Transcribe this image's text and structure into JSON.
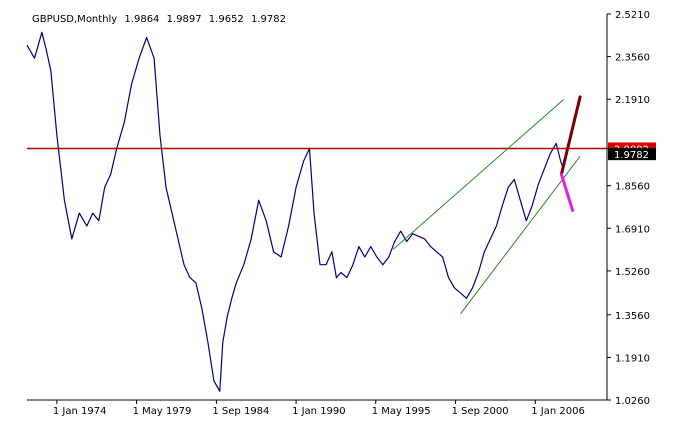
{
  "chart_info": {
    "symbol": "GBPUSD,Monthly",
    "open": "1.9864",
    "high": "1.9897",
    "low": "1.9652",
    "close": "1.9782"
  },
  "chart_data": {
    "type": "line",
    "title": "GBPUSD,Monthly",
    "xlabel": "",
    "ylabel": "",
    "ylim": [
      1.026,
      2.521
    ],
    "xlim": [
      1972.0,
      2010.8
    ],
    "y_ticks": [
      "2.5210",
      "2.3560",
      "2.1910",
      "2.0002",
      "1.8560",
      "1.6910",
      "1.5260",
      "1.3560",
      "1.1910",
      "1.0260"
    ],
    "y_tick_values": [
      2.521,
      2.356,
      2.191,
      2.0002,
      1.856,
      1.691,
      1.526,
      1.356,
      1.191,
      1.026
    ],
    "x_ticks": [
      "1 Jan 1974",
      "1 May 1979",
      "1 Sep 1984",
      "1 Jan 1990",
      "1 May 1995",
      "1 Sep 2000",
      "1 Jan 2006"
    ],
    "x_tick_values": [
      1974.0,
      1979.33,
      1984.67,
      1990.0,
      1995.33,
      2000.67,
      2006.0
    ],
    "series": [
      {
        "type": "line",
        "color": "#000080",
        "x": [
          1972.0,
          1972.5,
          1973.0,
          1973.3,
          1973.6,
          1974.0,
          1974.5,
          1975.0,
          1975.5,
          1976.0,
          1976.4,
          1976.8,
          1977.2,
          1977.6,
          1978.0,
          1978.5,
          1979.0,
          1979.5,
          1980.0,
          1980.5,
          1980.9,
          1981.3,
          1981.7,
          1982.1,
          1982.5,
          1982.9,
          1983.3,
          1983.7,
          1984.1,
          1984.5,
          1984.9,
          1985.1,
          1985.4,
          1985.7,
          1986.0,
          1986.5,
          1987.0,
          1987.5,
          1988.0,
          1988.5,
          1989.0,
          1989.5,
          1990.0,
          1990.5,
          1990.9,
          1991.2,
          1991.6,
          1992.0,
          1992.4,
          1992.7,
          1993.0,
          1993.4,
          1993.8,
          1994.2,
          1994.6,
          1995.0,
          1995.4,
          1995.8,
          1996.2,
          1996.6,
          1997.0,
          1997.4,
          1997.8,
          1998.2,
          1998.6,
          1999.0,
          1999.4,
          1999.8,
          2000.2,
          2000.6,
          2001.0,
          2001.4,
          2001.8,
          2002.2,
          2002.6,
          2003.0,
          2003.4,
          2003.8,
          2004.2,
          2004.6,
          2005.0,
          2005.4,
          2005.8,
          2006.2,
          2006.6,
          2007.0,
          2007.4,
          2007.7,
          2007.9
        ],
        "values": [
          2.4,
          2.35,
          2.45,
          2.38,
          2.3,
          2.05,
          1.8,
          1.65,
          1.75,
          1.7,
          1.75,
          1.72,
          1.85,
          1.9,
          2.0,
          2.1,
          2.25,
          2.35,
          2.43,
          2.35,
          2.05,
          1.85,
          1.75,
          1.65,
          1.55,
          1.5,
          1.48,
          1.38,
          1.25,
          1.1,
          1.06,
          1.25,
          1.35,
          1.42,
          1.48,
          1.55,
          1.65,
          1.8,
          1.72,
          1.6,
          1.58,
          1.7,
          1.85,
          1.95,
          2.0,
          1.75,
          1.55,
          1.55,
          1.6,
          1.5,
          1.52,
          1.5,
          1.55,
          1.62,
          1.58,
          1.62,
          1.58,
          1.55,
          1.58,
          1.64,
          1.68,
          1.64,
          1.67,
          1.66,
          1.65,
          1.62,
          1.6,
          1.58,
          1.5,
          1.46,
          1.44,
          1.42,
          1.46,
          1.52,
          1.6,
          1.65,
          1.7,
          1.78,
          1.85,
          1.88,
          1.8,
          1.72,
          1.78,
          1.86,
          1.92,
          1.98,
          2.02,
          1.95,
          1.92
        ]
      }
    ],
    "horizontal_lines": [
      {
        "y": 2.0002,
        "color": "#b00000"
      }
    ],
    "channel_lines": [
      {
        "x": [
          1996.5,
          2007.9
        ],
        "values": [
          1.61,
          2.19
        ],
        "color": "#228b22"
      },
      {
        "x": [
          2001.0,
          2009.0
        ],
        "values": [
          1.36,
          1.97
        ],
        "color": "#228b22"
      }
    ],
    "forecast_arrows": [
      {
        "x": [
          2007.75,
          2009.0
        ],
        "values": [
          1.9,
          2.2
        ],
        "color": "#7a0000"
      },
      {
        "x": [
          2007.75,
          2008.5
        ],
        "values": [
          1.9,
          1.76
        ],
        "color": "#e020e0"
      }
    ],
    "price_tags": [
      {
        "label": "2.0002",
        "value": 2.0002,
        "color": "#d00000"
      },
      {
        "label": "1.9782",
        "value": 1.9782,
        "color": "#000000"
      }
    ],
    "grid": false,
    "background": "#ffffff"
  }
}
